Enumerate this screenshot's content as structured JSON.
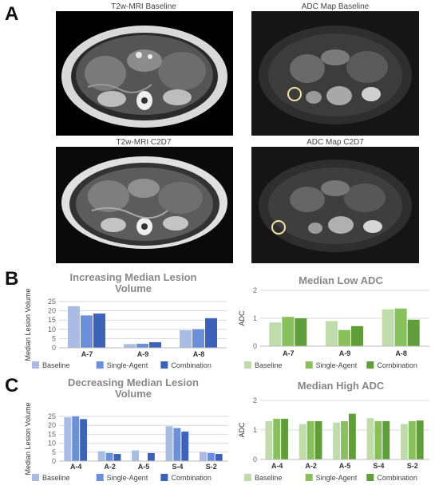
{
  "panels": {
    "A": {
      "letter": "A",
      "images": [
        {
          "title": "T2w-MRI Baseline",
          "kind": "T2w"
        },
        {
          "title": "ADC Map Baseline",
          "kind": "ADC"
        },
        {
          "title": "T2w-MRI C2D7",
          "kind": "T2w"
        },
        {
          "title": "ADC Map C2D7",
          "kind": "ADC"
        }
      ]
    },
    "B": {
      "letter": "B"
    },
    "C": {
      "letter": "C"
    }
  },
  "colors": {
    "blue_series": [
      "#a9bce3",
      "#6b8fd8",
      "#3e62b7"
    ],
    "green_series": [
      "#bfdcaa",
      "#88c15c",
      "#5f9e3a"
    ],
    "title_gray": "#888888",
    "axis_gray": "#666666",
    "grid": "#d9d9d9"
  },
  "chart_data": [
    {
      "id": "B-left",
      "type": "bar",
      "title": "Increasing Median Lesion Volume",
      "title_lines": [
        "Increasing Median Lesion",
        "Volume"
      ],
      "ylabel": "Median Lesion Volume",
      "xlabel": "",
      "ylim": [
        0,
        25
      ],
      "yticks": [
        0,
        5,
        10,
        15,
        20,
        25
      ],
      "categories": [
        "A-7",
        "A-9",
        "A-8"
      ],
      "series": [
        {
          "name": "Baseline",
          "values": [
            22.5,
            2.0,
            9.5
          ]
        },
        {
          "name": "Single-Agent",
          "values": [
            17.5,
            2.2,
            10.0
          ]
        },
        {
          "name": "Combination",
          "values": [
            18.5,
            3.0,
            16.0
          ]
        }
      ],
      "legend": "bottom",
      "grid": true
    },
    {
      "id": "B-right",
      "type": "bar",
      "title": "Median Low ADC",
      "title_lines": [
        "Median Low ADC"
      ],
      "ylabel": "ADC",
      "xlabel": "",
      "ylim": [
        0,
        2
      ],
      "yticks": [
        0,
        1,
        2
      ],
      "categories": [
        "A-7",
        "A-9",
        "A-8"
      ],
      "series": [
        {
          "name": "Baseline",
          "values": [
            0.85,
            0.9,
            1.32
          ]
        },
        {
          "name": "Single-Agent",
          "values": [
            1.05,
            0.58,
            1.35
          ]
        },
        {
          "name": "Combination",
          "values": [
            1.0,
            0.72,
            0.95
          ]
        }
      ],
      "legend": "bottom",
      "grid": true
    },
    {
      "id": "C-left",
      "type": "bar",
      "title": "Decreasing Median Lesion Volume",
      "title_lines": [
        "Decreasing Median Lesion",
        "Volume"
      ],
      "ylabel": "Median Lesion Volume",
      "xlabel": "",
      "ylim": [
        0,
        25
      ],
      "yticks": [
        0,
        5,
        10,
        15,
        20,
        25
      ],
      "categories": [
        "A-4",
        "A-2",
        "A-5",
        "S-4",
        "S-2"
      ],
      "series": [
        {
          "name": "Baseline",
          "values": [
            24.5,
            5.5,
            6.0,
            19.5,
            5.0
          ]
        },
        {
          "name": "Single-Agent",
          "values": [
            25.0,
            4.5,
            0,
            18.5,
            4.5
          ]
        },
        {
          "name": "Combination",
          "values": [
            23.5,
            4.0,
            4.5,
            16.5,
            4.0
          ]
        }
      ],
      "legend": "bottom",
      "grid": true
    },
    {
      "id": "C-right",
      "type": "bar",
      "title": "Median High ADC",
      "title_lines": [
        "Median High ADC"
      ],
      "ylabel": "ADC",
      "xlabel": "",
      "ylim": [
        0,
        2
      ],
      "yticks": [
        0,
        1,
        2
      ],
      "categories": [
        "A-4",
        "A-2",
        "A-5",
        "S-4",
        "S-2"
      ],
      "series": [
        {
          "name": "Baseline",
          "values": [
            1.3,
            1.2,
            1.25,
            1.4,
            1.2
          ]
        },
        {
          "name": "Single-Agent",
          "values": [
            1.38,
            1.3,
            1.3,
            1.3,
            1.3
          ]
        },
        {
          "name": "Combination",
          "values": [
            1.38,
            1.3,
            1.55,
            1.3,
            1.32
          ]
        }
      ],
      "legend": "bottom",
      "grid": true
    }
  ]
}
